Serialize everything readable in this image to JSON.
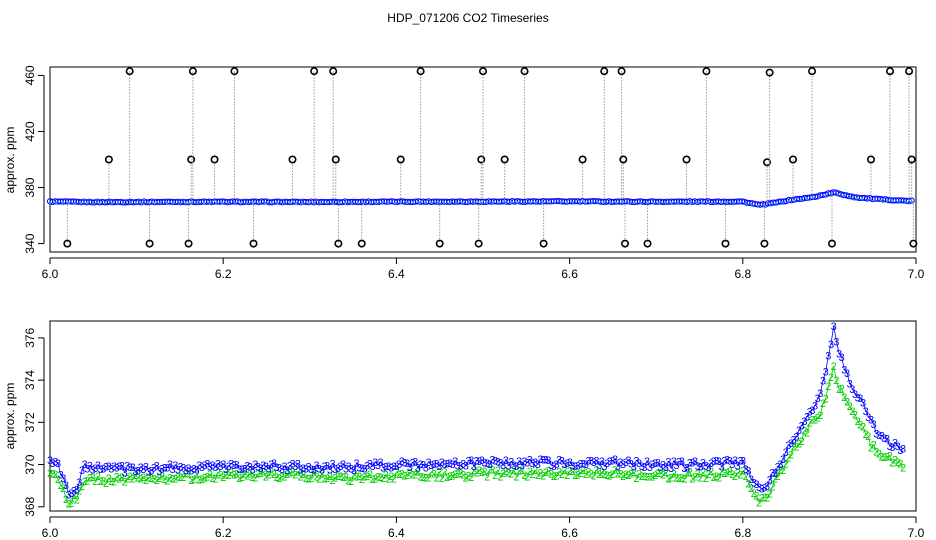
{
  "figure": {
    "title": "HDP_071206  CO2 Timeseries"
  },
  "chart_data": [
    {
      "type": "scatter",
      "ylabel": "approx. ppm",
      "xlabel": "",
      "xlim": [
        6.0,
        7.0
      ],
      "ylim": [
        334,
        466
      ],
      "xticks": [
        "6.0",
        "6.2",
        "6.4",
        "6.6",
        "6.8",
        "7.0"
      ],
      "yticks": [
        "340",
        "380",
        "420",
        "460"
      ],
      "xtick_values": [
        6.0,
        6.2,
        6.4,
        6.6,
        6.8,
        7.0
      ],
      "ytick_values": [
        340,
        380,
        420,
        460
      ],
      "grid": false,
      "colors": {
        "raw": "#000000",
        "line": "#999999",
        "cleaned": "#00b7c7",
        "mean": "#0000ff"
      },
      "baseline": [
        [
          6.0,
          370
        ],
        [
          6.05,
          369.6
        ],
        [
          6.1,
          369.7
        ],
        [
          6.15,
          369.8
        ],
        [
          6.2,
          369.8
        ],
        [
          6.3,
          369.7
        ],
        [
          6.4,
          369.9
        ],
        [
          6.5,
          370.0
        ],
        [
          6.6,
          370.1
        ],
        [
          6.7,
          369.9
        ],
        [
          6.8,
          370.0
        ],
        [
          6.82,
          367.5
        ],
        [
          6.84,
          369.5
        ],
        [
          6.86,
          371.5
        ],
        [
          6.88,
          373.0
        ],
        [
          6.905,
          376.5
        ],
        [
          6.93,
          373.0
        ],
        [
          6.96,
          371.5
        ],
        [
          6.99,
          370.5
        ]
      ],
      "spikes": [
        [
          6.02,
          340
        ],
        [
          6.068,
          400
        ],
        [
          6.092,
          463
        ],
        [
          6.115,
          340
        ],
        [
          6.16,
          340
        ],
        [
          6.163,
          400
        ],
        [
          6.165,
          463
        ],
        [
          6.19,
          400
        ],
        [
          6.213,
          463
        ],
        [
          6.235,
          340
        ],
        [
          6.28,
          400
        ],
        [
          6.305,
          463
        ],
        [
          6.327,
          463
        ],
        [
          6.33,
          400
        ],
        [
          6.333,
          340
        ],
        [
          6.36,
          340
        ],
        [
          6.405,
          400
        ],
        [
          6.428,
          463
        ],
        [
          6.45,
          340
        ],
        [
          6.495,
          340
        ],
        [
          6.498,
          400
        ],
        [
          6.5,
          463
        ],
        [
          6.525,
          400
        ],
        [
          6.548,
          463
        ],
        [
          6.57,
          340
        ],
        [
          6.615,
          400
        ],
        [
          6.64,
          463
        ],
        [
          6.66,
          463
        ],
        [
          6.662,
          400
        ],
        [
          6.664,
          340
        ],
        [
          6.69,
          340
        ],
        [
          6.735,
          400
        ],
        [
          6.758,
          463
        ],
        [
          6.78,
          340
        ],
        [
          6.825,
          340
        ],
        [
          6.828,
          398
        ],
        [
          6.831,
          462
        ],
        [
          6.858,
          400
        ],
        [
          6.88,
          463
        ],
        [
          6.903,
          340
        ],
        [
          6.948,
          400
        ],
        [
          6.97,
          463
        ],
        [
          6.992,
          463
        ],
        [
          6.995,
          400
        ],
        [
          6.997,
          340
        ]
      ]
    },
    {
      "type": "scatter",
      "ylabel": "approx. ppm",
      "xlabel": "",
      "xlim": [
        6.0,
        7.0
      ],
      "ylim": [
        367.8,
        376.8
      ],
      "xticks": [
        "6.0",
        "6.2",
        "6.4",
        "6.6",
        "6.8",
        "7.0"
      ],
      "yticks": [
        "368",
        "370",
        "372",
        "374",
        "376"
      ],
      "xtick_values": [
        6.0,
        6.2,
        6.4,
        6.6,
        6.8,
        7.0
      ],
      "ytick_values": [
        368,
        370,
        372,
        374,
        376
      ],
      "grid": false,
      "series": [
        {
          "marker": "3",
          "color": "#0000ff",
          "values": [
            [
              6.0,
              370.1
            ],
            [
              6.01,
              369.9
            ],
            [
              6.02,
              368.7
            ],
            [
              6.03,
              368.8
            ],
            [
              6.04,
              369.9
            ],
            [
              6.06,
              369.8
            ],
            [
              6.08,
              369.8
            ],
            [
              6.1,
              369.8
            ],
            [
              6.15,
              369.9
            ],
            [
              6.2,
              369.9
            ],
            [
              6.25,
              369.9
            ],
            [
              6.3,
              369.9
            ],
            [
              6.35,
              369.9
            ],
            [
              6.4,
              370.0
            ],
            [
              6.45,
              370.0
            ],
            [
              6.5,
              370.1
            ],
            [
              6.55,
              370.1
            ],
            [
              6.6,
              370.1
            ],
            [
              6.65,
              370.1
            ],
            [
              6.7,
              370.0
            ],
            [
              6.75,
              370.0
            ],
            [
              6.8,
              370.1
            ],
            [
              6.82,
              368.7
            ],
            [
              6.83,
              369.2
            ],
            [
              6.84,
              369.9
            ],
            [
              6.85,
              370.6
            ],
            [
              6.86,
              371.3
            ],
            [
              6.87,
              372.0
            ],
            [
              6.88,
              372.7
            ],
            [
              6.89,
              373.4
            ],
            [
              6.9,
              375.3
            ],
            [
              6.905,
              376.5
            ],
            [
              6.91,
              375.5
            ],
            [
              6.92,
              374.2
            ],
            [
              6.93,
              373.4
            ],
            [
              6.94,
              372.8
            ],
            [
              6.95,
              371.8
            ],
            [
              6.96,
              371.3
            ],
            [
              6.97,
              371.0
            ],
            [
              6.98,
              370.8
            ],
            [
              6.985,
              370.6
            ]
          ]
        },
        {
          "marker": "2",
          "color": "#00cc00",
          "values": [
            [
              6.0,
              369.5
            ],
            [
              6.01,
              369.4
            ],
            [
              6.02,
              368.3
            ],
            [
              6.03,
              368.4
            ],
            [
              6.04,
              369.4
            ],
            [
              6.06,
              369.3
            ],
            [
              6.08,
              369.3
            ],
            [
              6.1,
              369.4
            ],
            [
              6.15,
              369.4
            ],
            [
              6.2,
              369.5
            ],
            [
              6.25,
              369.5
            ],
            [
              6.3,
              369.5
            ],
            [
              6.35,
              369.4
            ],
            [
              6.4,
              369.5
            ],
            [
              6.45,
              369.5
            ],
            [
              6.5,
              369.6
            ],
            [
              6.55,
              369.6
            ],
            [
              6.6,
              369.6
            ],
            [
              6.65,
              369.6
            ],
            [
              6.7,
              369.5
            ],
            [
              6.75,
              369.5
            ],
            [
              6.8,
              369.6
            ],
            [
              6.82,
              368.2
            ],
            [
              6.83,
              368.7
            ],
            [
              6.84,
              369.4
            ],
            [
              6.85,
              370.1
            ],
            [
              6.86,
              370.8
            ],
            [
              6.87,
              371.4
            ],
            [
              6.88,
              372.0
            ],
            [
              6.89,
              372.5
            ],
            [
              6.9,
              373.8
            ],
            [
              6.905,
              374.6
            ],
            [
              6.91,
              373.8
            ],
            [
              6.92,
              373.0
            ],
            [
              6.93,
              372.2
            ],
            [
              6.94,
              371.6
            ],
            [
              6.95,
              370.8
            ],
            [
              6.96,
              370.5
            ],
            [
              6.97,
              370.3
            ],
            [
              6.98,
              370.1
            ],
            [
              6.985,
              370.0
            ]
          ]
        }
      ]
    }
  ]
}
